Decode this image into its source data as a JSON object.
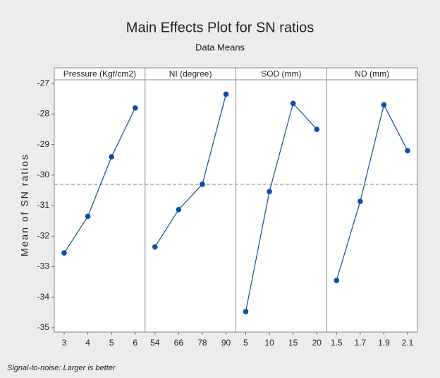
{
  "chart_data": {
    "type": "line",
    "title": "Main Effects Plot for SN ratios",
    "subtitle": "Data Means",
    "ylabel": "Mean of SN ratios",
    "footnote": "Signal-to-noise: Larger is better",
    "ylim": [
      -35.14,
      -26.88
    ],
    "yticks": [
      -35,
      -34,
      -33,
      -32,
      -31,
      -30,
      -29,
      -28,
      -27
    ],
    "reference_line": -30.3,
    "color": "#0b4ea2",
    "panels": [
      {
        "title": "Pressure (Kgf/cm2)",
        "categories": [
          "3",
          "4",
          "5",
          "6"
        ],
        "values": [
          -32.55,
          -31.35,
          -29.4,
          -27.8
        ]
      },
      {
        "title": "NI (degree)",
        "categories": [
          "54",
          "66",
          "78",
          "90"
        ],
        "values": [
          -32.35,
          -31.13,
          -30.3,
          -27.35
        ]
      },
      {
        "title": "SOD (mm)",
        "categories": [
          "5",
          "10",
          "15",
          "20"
        ],
        "values": [
          -34.47,
          -30.54,
          -27.65,
          -28.5
        ]
      },
      {
        "title": "ND (mm)",
        "categories": [
          "1.5",
          "1.7",
          "1.9",
          "2.1"
        ],
        "values": [
          -33.45,
          -30.86,
          -27.7,
          -29.2
        ]
      }
    ]
  }
}
